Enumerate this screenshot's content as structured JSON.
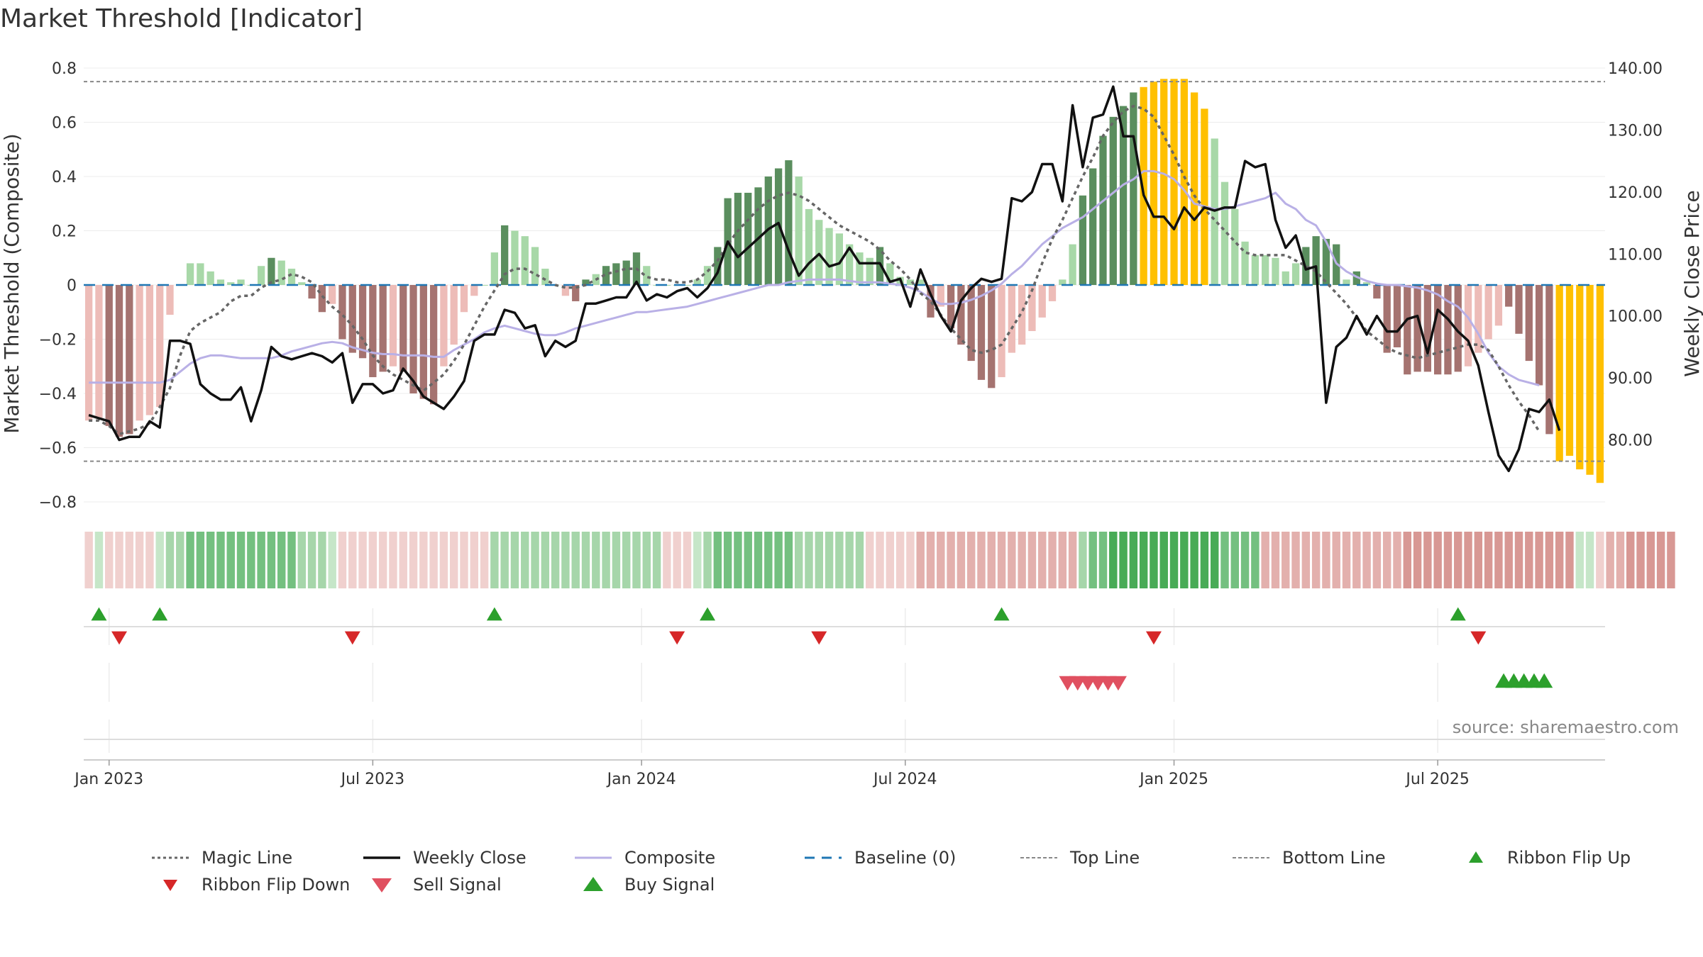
{
  "colors": {
    "magic": "#666666",
    "close": "#111111",
    "composite": "#b9b0e6",
    "baseline": "#1f77b4",
    "topline": "#888888",
    "bottomline": "#888888",
    "flip_up": "#2ca02c",
    "flip_down": "#d62728",
    "sell": "#e05060",
    "buy": "#2ca02c",
    "extreme": "#ffc000",
    "pos_strong": "#5a8e5e",
    "pos_weak": "#a8d8a8",
    "neg_strong": "#a57370",
    "neg_weak": "#edbcb8"
  },
  "chart_data": {
    "type": "bar",
    "title": "Market Threshold [Indicator]",
    "ylabel_left": "Market Threshold (Composite)",
    "ylabel_right": "Weekly Close Price",
    "ylim_left": [
      -0.8,
      0.8
    ],
    "ylim_right": [
      70,
      140
    ],
    "left_ticks": [
      "−0.8",
      "−0.6",
      "−0.4",
      "−0.2",
      "0",
      "0.2",
      "0.4",
      "0.6",
      "0.8"
    ],
    "left_tick_values": [
      -0.8,
      -0.6,
      -0.4,
      -0.2,
      0,
      0.2,
      0.4,
      0.6,
      0.8
    ],
    "right_ticks": [
      "80.00",
      "90.00",
      "100.00",
      "110.00",
      "120.00",
      "130.00",
      "140.00"
    ],
    "right_tick_values": [
      80,
      90,
      100,
      110,
      120,
      130,
      140
    ],
    "x_ticks": [
      "Jan 2023",
      "Jul 2023",
      "Jan 2024",
      "Jul 2024",
      "Jan 2025",
      "Jul 2025"
    ],
    "x_tick_weeks": [
      2,
      28,
      54.5,
      80.5,
      107,
      133
    ],
    "top_line": 0.75,
    "bottom_line": -0.65,
    "baseline": 0,
    "threshold_values": [
      -0.5,
      -0.49,
      -0.52,
      -0.56,
      -0.55,
      -0.5,
      -0.48,
      -0.45,
      -0.11,
      0,
      0.08,
      0.08,
      0.05,
      0.02,
      0.01,
      0.02,
      0,
      0.07,
      0.1,
      0.09,
      0.06,
      0.01,
      -0.05,
      -0.1,
      -0.07,
      -0.2,
      -0.25,
      -0.27,
      -0.34,
      -0.32,
      -0.3,
      -0.32,
      -0.4,
      -0.42,
      -0.44,
      -0.3,
      -0.22,
      -0.1,
      -0.04,
      0,
      0.12,
      0.22,
      0.2,
      0.18,
      0.14,
      0.06,
      0,
      -0.04,
      -0.06,
      0.02,
      0.04,
      0.07,
      0.08,
      0.09,
      0.12,
      0.07,
      0,
      0,
      0,
      0,
      0.02,
      0.07,
      0.14,
      0.32,
      0.34,
      0.34,
      0.36,
      0.4,
      0.43,
      0.46,
      0.4,
      0.28,
      0.24,
      0.21,
      0.19,
      0.15,
      0.12,
      0.1,
      0.14,
      0.08,
      0.03,
      0.02,
      0.02,
      -0.12,
      -0.08,
      -0.16,
      -0.22,
      -0.28,
      -0.35,
      -0.38,
      -0.34,
      -0.25,
      -0.22,
      -0.17,
      -0.12,
      -0.06,
      0.02,
      0.15,
      0.33,
      0.43,
      0.55,
      0.62,
      0.66,
      0.71,
      0.73,
      0.75,
      0.76,
      0.76,
      0.76,
      0.71,
      0.65,
      0.54,
      0.38,
      0.28,
      0.16,
      0.11,
      0.11,
      0.1,
      0.05,
      0.08,
      0.14,
      0.18,
      0.17,
      0.15,
      0.02,
      0.05,
      0.01,
      -0.05,
      -0.25,
      -0.23,
      -0.33,
      -0.32,
      -0.32,
      -0.33,
      -0.33,
      -0.32,
      -0.3,
      -0.25,
      -0.2,
      -0.15,
      -0.08,
      -0.18,
      -0.28,
      -0.37,
      -0.55,
      -0.65,
      -0.63,
      -0.68,
      -0.7,
      -0.73
    ],
    "bar_categories": [
      "nw",
      "nw",
      "ns",
      "ns",
      "ns",
      "nw",
      "nw",
      "nw",
      "nw",
      "pw",
      "pw",
      "pw",
      "pw",
      "pw",
      "pw",
      "pw",
      "pw",
      "pw",
      "ps",
      "pw",
      "pw",
      "pw",
      "ns",
      "ns",
      "nw",
      "ns",
      "ns",
      "ns",
      "ns",
      "ns",
      "nw",
      "ns",
      "ns",
      "ns",
      "ns",
      "nw",
      "nw",
      "nw",
      "nw",
      "pw",
      "pw",
      "ps",
      "pw",
      "pw",
      "pw",
      "pw",
      "pw",
      "nw",
      "ns",
      "ps",
      "pw",
      "ps",
      "ps",
      "ps",
      "ps",
      "pw",
      "pw",
      "pw",
      "pw",
      "pw",
      "pw",
      "pw",
      "ps",
      "ps",
      "ps",
      "ps",
      "ps",
      "ps",
      "ps",
      "ps",
      "pw",
      "pw",
      "pw",
      "pw",
      "pw",
      "pw",
      "pw",
      "pw",
      "ps",
      "pw",
      "pw",
      "pw",
      "pw",
      "ns",
      "nw",
      "ns",
      "ns",
      "ns",
      "ns",
      "ns",
      "nw",
      "nw",
      "nw",
      "nw",
      "nw",
      "nw",
      "pw",
      "pw",
      "ps",
      "ps",
      "ps",
      "ps",
      "ps",
      "ps",
      "ex",
      "ex",
      "ex",
      "ex",
      "ex",
      "ex",
      "ex",
      "pw",
      "pw",
      "pw",
      "pw",
      "pw",
      "pw",
      "pw",
      "pw",
      "pw",
      "ps",
      "ps",
      "ps",
      "ps",
      "pw",
      "ps",
      "pw",
      "ns",
      "ns",
      "ns",
      "ns",
      "ns",
      "ns",
      "ns",
      "ns",
      "ns",
      "nw",
      "nw",
      "nw",
      "nw",
      "ns",
      "ns",
      "ns",
      "ns",
      "ns",
      "ex",
      "ex",
      "ex",
      "ex",
      "ex"
    ],
    "series": [
      {
        "name": "Weekly Close",
        "values": [
          84,
          83.5,
          83,
          80,
          80.5,
          80.5,
          83,
          82,
          96,
          96,
          95.5,
          89,
          87.5,
          86.5,
          86.5,
          88.5,
          83,
          88,
          95,
          93.5,
          93,
          93.5,
          94,
          93.5,
          92.5,
          94,
          86,
          89,
          89,
          87.5,
          88,
          91.5,
          89.5,
          87,
          86,
          85,
          87,
          89.5,
          96,
          97,
          97,
          101,
          100.5,
          98,
          98.5,
          93.5,
          96,
          95,
          96,
          102,
          102,
          102.5,
          103,
          103,
          105.5,
          102.5,
          103.5,
          103,
          104,
          104.5,
          103,
          104.5,
          107,
          112,
          109.5,
          111,
          112.5,
          114,
          115,
          110.5,
          106.5,
          108.5,
          110,
          108,
          108.5,
          111,
          108.5,
          108.5,
          108.5,
          105.5,
          106,
          101.5,
          107.5,
          103.5,
          100,
          97.5,
          102.5,
          104.5,
          106,
          105.5,
          106,
          119,
          118.5,
          120,
          124.5,
          124.5,
          118.5,
          134,
          124,
          132,
          132.5,
          137,
          129,
          129,
          119.5,
          116,
          116,
          114,
          117.5,
          115.5,
          117.5,
          117,
          117.5,
          117.5,
          125,
          124,
          124.5,
          115.5,
          111,
          113,
          107.5,
          108,
          86,
          95,
          96.5,
          100,
          97,
          100,
          97.5,
          97.5,
          99.5,
          100,
          94,
          101,
          99.5,
          97.5,
          96,
          92,
          84.5,
          77.5,
          75,
          78.5,
          85,
          84.5,
          86.5,
          81.5
        ]
      },
      {
        "name": "Composite",
        "values": [
          -0.36,
          -0.36,
          -0.36,
          -0.36,
          -0.36,
          -0.36,
          -0.36,
          -0.36,
          -0.35,
          -0.32,
          -0.29,
          -0.27,
          -0.26,
          -0.26,
          -0.265,
          -0.27,
          -0.27,
          -0.27,
          -0.27,
          -0.26,
          -0.245,
          -0.235,
          -0.225,
          -0.215,
          -0.21,
          -0.215,
          -0.23,
          -0.24,
          -0.25,
          -0.255,
          -0.255,
          -0.26,
          -0.26,
          -0.26,
          -0.265,
          -0.265,
          -0.24,
          -0.22,
          -0.2,
          -0.175,
          -0.16,
          -0.15,
          -0.16,
          -0.17,
          -0.18,
          -0.185,
          -0.185,
          -0.175,
          -0.16,
          -0.15,
          -0.14,
          -0.13,
          -0.12,
          -0.11,
          -0.1,
          -0.1,
          -0.095,
          -0.09,
          -0.085,
          -0.08,
          -0.07,
          -0.06,
          -0.05,
          -0.04,
          -0.03,
          -0.02,
          -0.01,
          0,
          0,
          0.01,
          0.015,
          0.02,
          0.02,
          0.02,
          0.02,
          0.015,
          0.01,
          0.01,
          0.01,
          0.005,
          0,
          -0.01,
          -0.025,
          -0.05,
          -0.07,
          -0.07,
          -0.065,
          -0.055,
          -0.04,
          -0.02,
          0.005,
          0.04,
          0.07,
          0.11,
          0.15,
          0.18,
          0.21,
          0.23,
          0.25,
          0.28,
          0.31,
          0.34,
          0.37,
          0.39,
          0.42,
          0.42,
          0.41,
          0.39,
          0.35,
          0.3,
          0.29,
          0.28,
          0.28,
          0.29,
          0.3,
          0.31,
          0.32,
          0.34,
          0.3,
          0.28,
          0.24,
          0.22,
          0.16,
          0.08,
          0.05,
          0.03,
          0.015,
          0.005,
          0,
          0,
          -0.005,
          -0.01,
          -0.02,
          -0.035,
          -0.06,
          -0.08,
          -0.12,
          -0.18,
          -0.25,
          -0.3,
          -0.33,
          -0.35,
          -0.36,
          -0.37
        ]
      },
      {
        "name": "Magic Line",
        "values": [
          -0.5,
          -0.5,
          -0.52,
          -0.55,
          -0.54,
          -0.53,
          -0.51,
          -0.45,
          -0.38,
          -0.26,
          -0.17,
          -0.14,
          -0.12,
          -0.1,
          -0.06,
          -0.04,
          -0.04,
          -0.01,
          0.01,
          0.02,
          0.04,
          0.03,
          0.01,
          -0.04,
          -0.08,
          -0.11,
          -0.15,
          -0.2,
          -0.26,
          -0.3,
          -0.33,
          -0.35,
          -0.37,
          -0.39,
          -0.36,
          -0.33,
          -0.28,
          -0.22,
          -0.15,
          -0.08,
          -0.02,
          0.04,
          0.06,
          0.06,
          0.04,
          0.02,
          0,
          -0.01,
          -0.01,
          0,
          0.02,
          0.04,
          0.05,
          0.06,
          0.06,
          0.03,
          0.02,
          0.02,
          0.01,
          0.01,
          0.02,
          0.05,
          0.09,
          0.15,
          0.2,
          0.24,
          0.28,
          0.31,
          0.33,
          0.34,
          0.33,
          0.31,
          0.28,
          0.25,
          0.22,
          0.2,
          0.18,
          0.16,
          0.13,
          0.09,
          0.06,
          0.02,
          -0.03,
          -0.06,
          -0.11,
          -0.16,
          -0.2,
          -0.24,
          -0.25,
          -0.24,
          -0.22,
          -0.16,
          -0.1,
          -0.02,
          0.08,
          0.17,
          0.24,
          0.32,
          0.4,
          0.47,
          0.55,
          0.6,
          0.64,
          0.66,
          0.65,
          0.62,
          0.55,
          0.48,
          0.4,
          0.33,
          0.28,
          0.24,
          0.2,
          0.16,
          0.12,
          0.11,
          0.11,
          0.11,
          0.11,
          0.09,
          0.07,
          0.05,
          0.01,
          -0.03,
          -0.07,
          -0.12,
          -0.17,
          -0.2,
          -0.23,
          -0.25,
          -0.26,
          -0.27,
          -0.26,
          -0.25,
          -0.24,
          -0.23,
          -0.22,
          -0.22,
          -0.24,
          -0.3,
          -0.37,
          -0.43,
          -0.48,
          -0.54
        ]
      }
    ],
    "ribbon_levels": [
      -1,
      1,
      -1,
      -1,
      -1,
      -1,
      -1,
      1,
      2,
      2,
      3,
      3,
      3,
      3,
      3,
      3,
      3,
      3,
      3,
      3,
      3,
      2,
      2,
      2,
      1,
      -1,
      -1,
      -1,
      -1,
      -1,
      -1,
      -1,
      -1,
      -1,
      -1,
      -1,
      -1,
      -1,
      -1,
      -1,
      2,
      2,
      2,
      2,
      2,
      2,
      2,
      2,
      2,
      2,
      2,
      2,
      2,
      2,
      2,
      2,
      2,
      -1,
      -1,
      -1,
      1,
      2,
      3,
      3,
      3,
      3,
      3,
      3,
      3,
      3,
      2,
      2,
      2,
      2,
      2,
      2,
      2,
      -1,
      -1,
      -1,
      -1,
      -1,
      -2,
      -2,
      -2,
      -2,
      -2,
      -2,
      -2,
      -2,
      -2,
      -2,
      -2,
      -2,
      -2,
      -2,
      -2,
      -2,
      2,
      3,
      3,
      4,
      4,
      4,
      4,
      4,
      4,
      4,
      4,
      4,
      4,
      4,
      3,
      3,
      3,
      3,
      -2,
      -2,
      -2,
      -2,
      -2,
      -2,
      -2,
      -2,
      -2,
      -2,
      -2,
      -2,
      -2,
      -2,
      -3,
      -3,
      -3,
      -3,
      -3,
      -3,
      -3,
      -3,
      -3,
      -3,
      -3,
      -3,
      -3,
      -3,
      -3,
      -3,
      -3,
      1,
      1,
      -1,
      -2,
      -2,
      -3,
      -3,
      -3,
      -3,
      -3
    ],
    "ribbon_flip_up_weeks": [
      1,
      7,
      40,
      61,
      90,
      135
    ],
    "ribbon_flip_down_weeks": [
      3,
      26,
      58,
      72,
      105,
      137
    ],
    "sell_signal_weeks": [
      96.5,
      97.5,
      98.5,
      99.5,
      100.5,
      101.5
    ],
    "buy_signal_weeks": [
      139.5,
      140.5,
      141.5,
      142.5,
      143.5
    ]
  },
  "source_text": "source: sharemaestro.com",
  "legend": [
    {
      "label": "Magic Line",
      "symbol": "dotted",
      "color_key": "magic"
    },
    {
      "label": "Weekly Close",
      "symbol": "solid",
      "color_key": "close"
    },
    {
      "label": "Composite",
      "symbol": "solid-thin",
      "color_key": "composite"
    },
    {
      "label": "Baseline (0)",
      "symbol": "dashed",
      "color_key": "baseline"
    },
    {
      "label": "Top Line",
      "symbol": "dashed-fine",
      "color_key": "topline"
    },
    {
      "label": "Bottom Line",
      "symbol": "dashed-fine",
      "color_key": "bottomline"
    },
    {
      "label": "Ribbon Flip Up",
      "symbol": "tri-up",
      "color_key": "flip_up"
    },
    {
      "label": "Ribbon Flip Down",
      "symbol": "tri-down",
      "color_key": "flip_down"
    },
    {
      "label": "Sell Signal",
      "symbol": "tri-down-big",
      "color_key": "sell"
    },
    {
      "label": "Buy Signal",
      "symbol": "tri-up-big",
      "color_key": "buy"
    }
  ]
}
